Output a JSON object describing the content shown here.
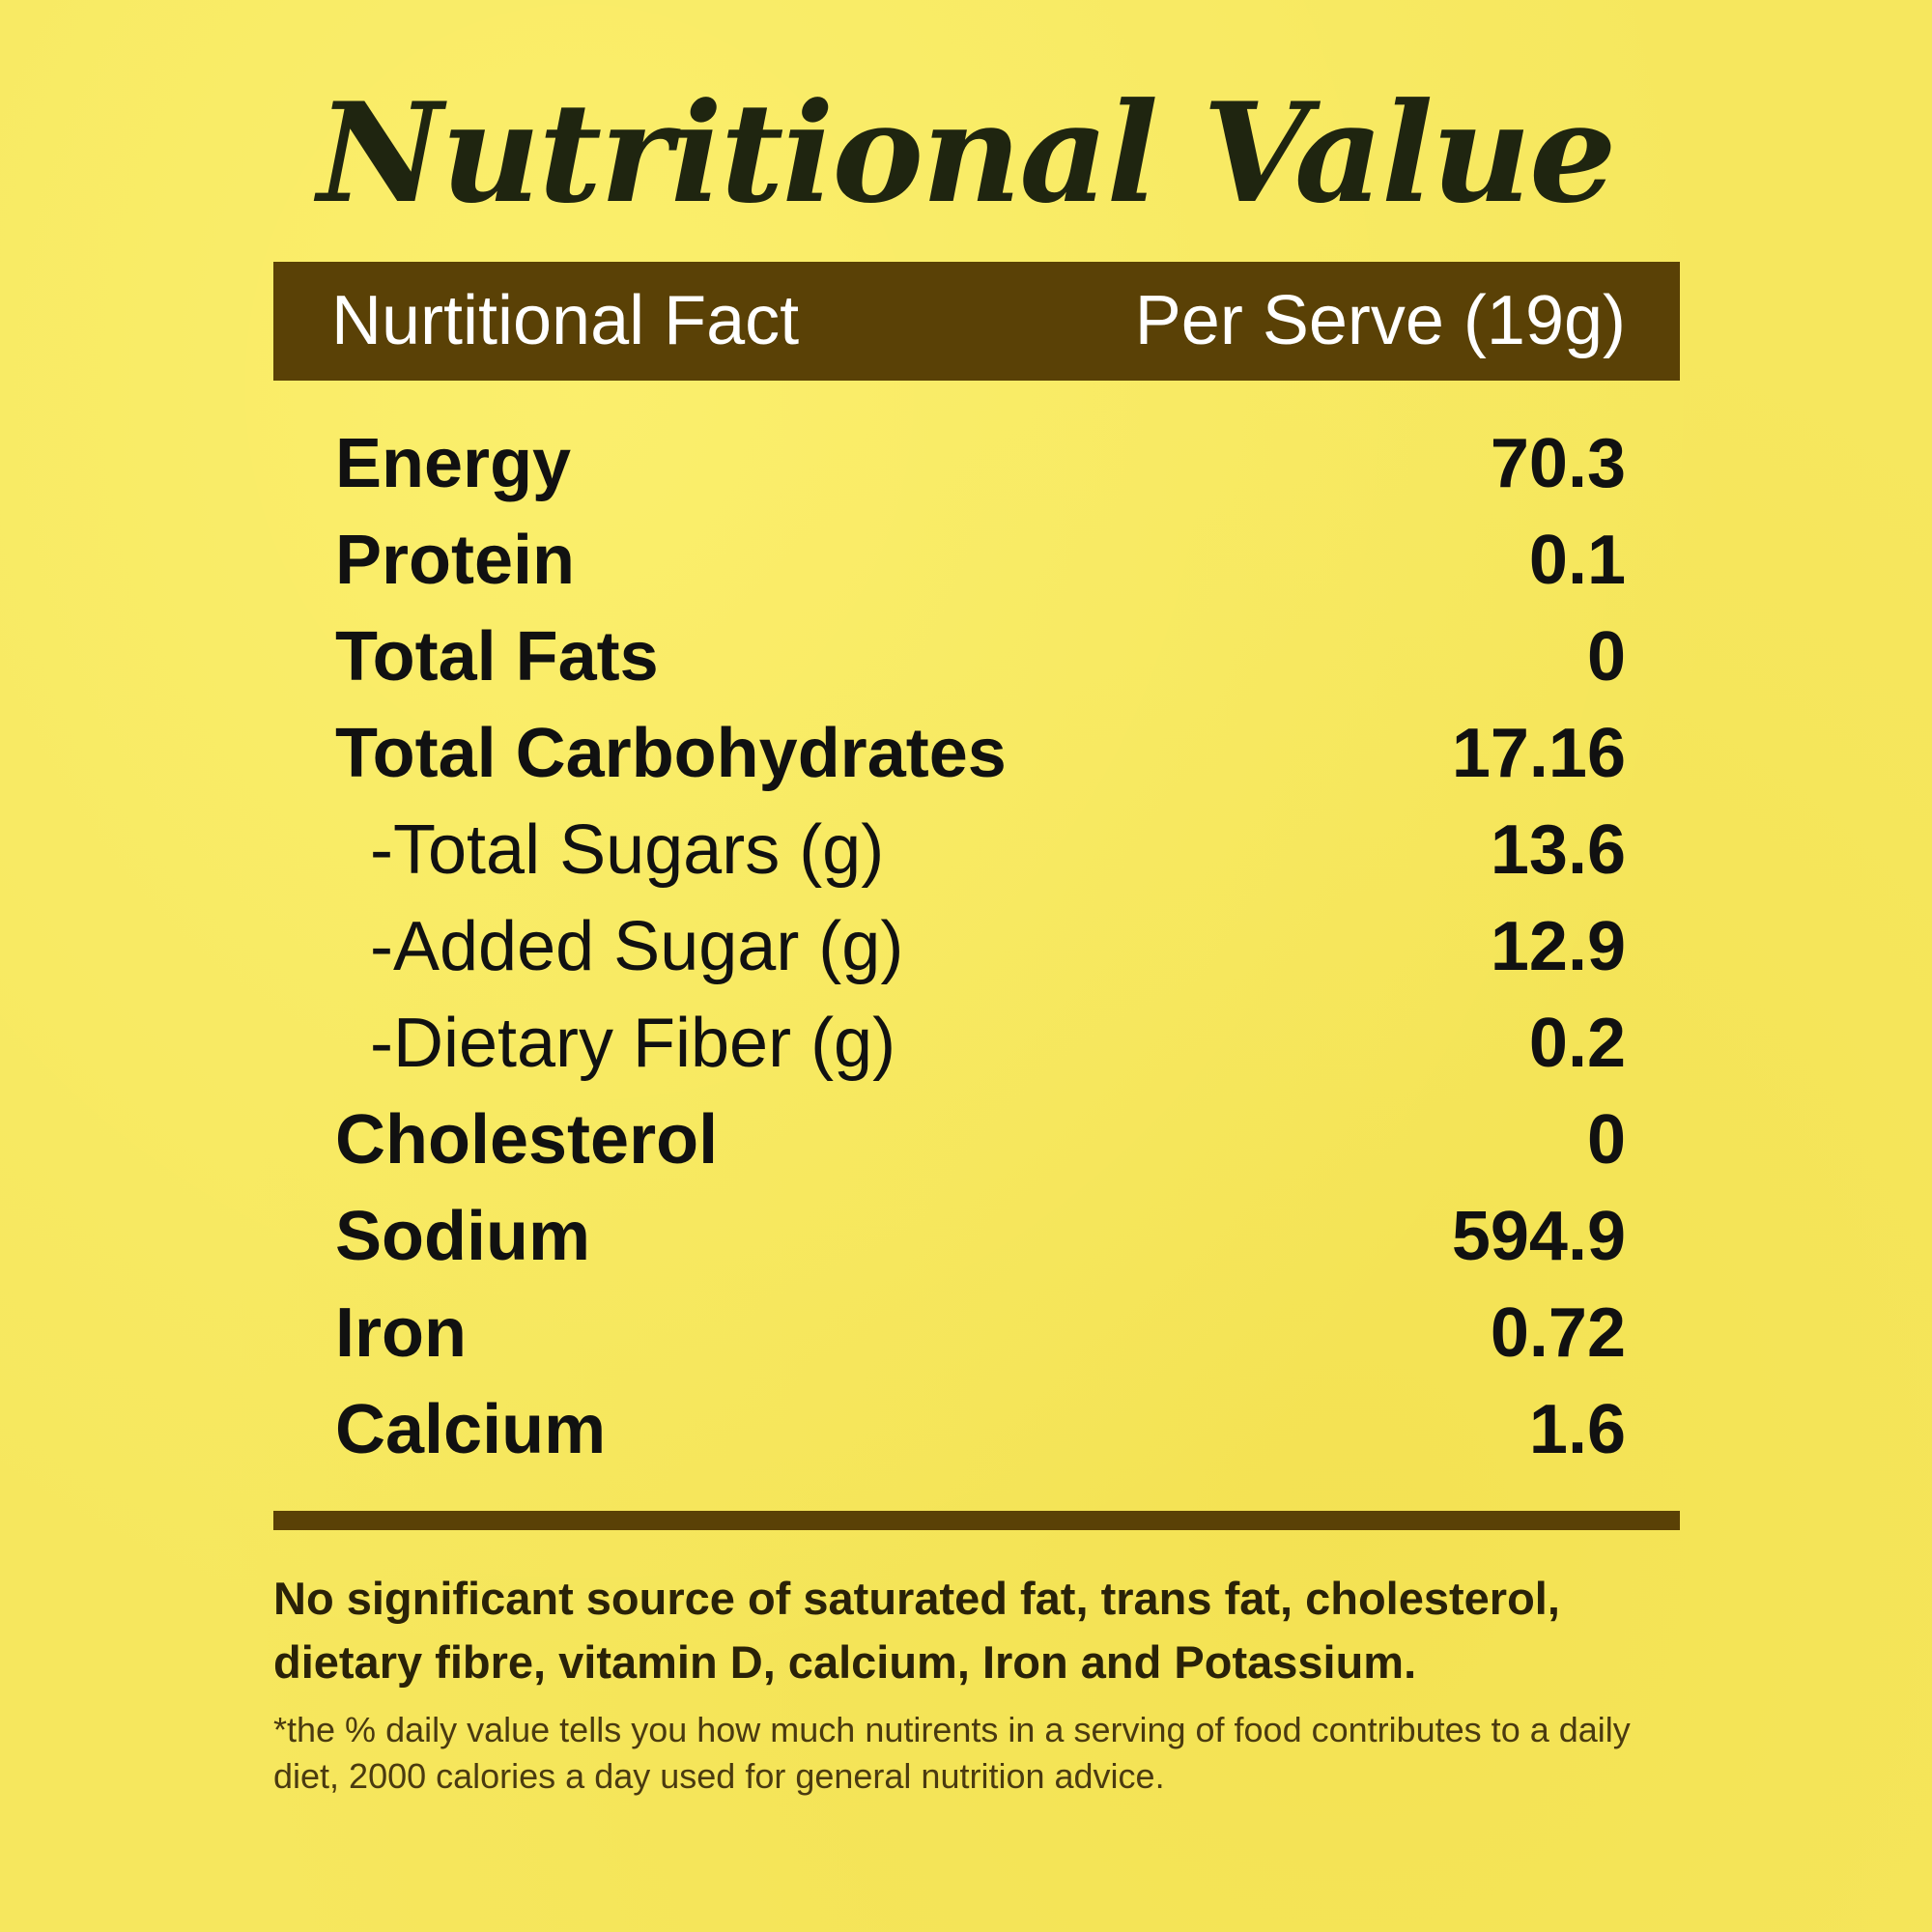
{
  "title": "Nutritional Value",
  "header": {
    "left": "Nurtitional Fact",
    "right": "Per Serve (19g)"
  },
  "rows": [
    {
      "label": "Energy",
      "value": "70.3"
    },
    {
      "label": "Protein",
      "value": "0.1"
    },
    {
      "label": "Total Fats",
      "value": "0"
    },
    {
      "label": "Total Carbohydrates",
      "value": "17.16"
    },
    {
      "label": "-Total Sugars (g)",
      "value": "13.6"
    },
    {
      "label": "-Added Sugar (g)",
      "value": "12.9"
    },
    {
      "label": "-Dietary Fiber (g)",
      "value": "0.2"
    },
    {
      "label": "Cholesterol",
      "value": "0"
    },
    {
      "label": "Sodium",
      "value": "594.9"
    },
    {
      "label": "Iron",
      "value": "0.72"
    },
    {
      "label": "Calcium",
      "value": "1.6"
    }
  ],
  "note": "No significant source of saturated fat, trans fat, cholesterol, dietary fibre, vitamin D, calcium, Iron and Potassium.",
  "footnote": "*the % daily value tells you how much nutirents in a serving of food contributes to a daily diet, 2000 calories a day used for general nutrition advice.",
  "colors": {
    "background": "#f6e75e",
    "bar": "#5a4106",
    "text": "#111111"
  }
}
